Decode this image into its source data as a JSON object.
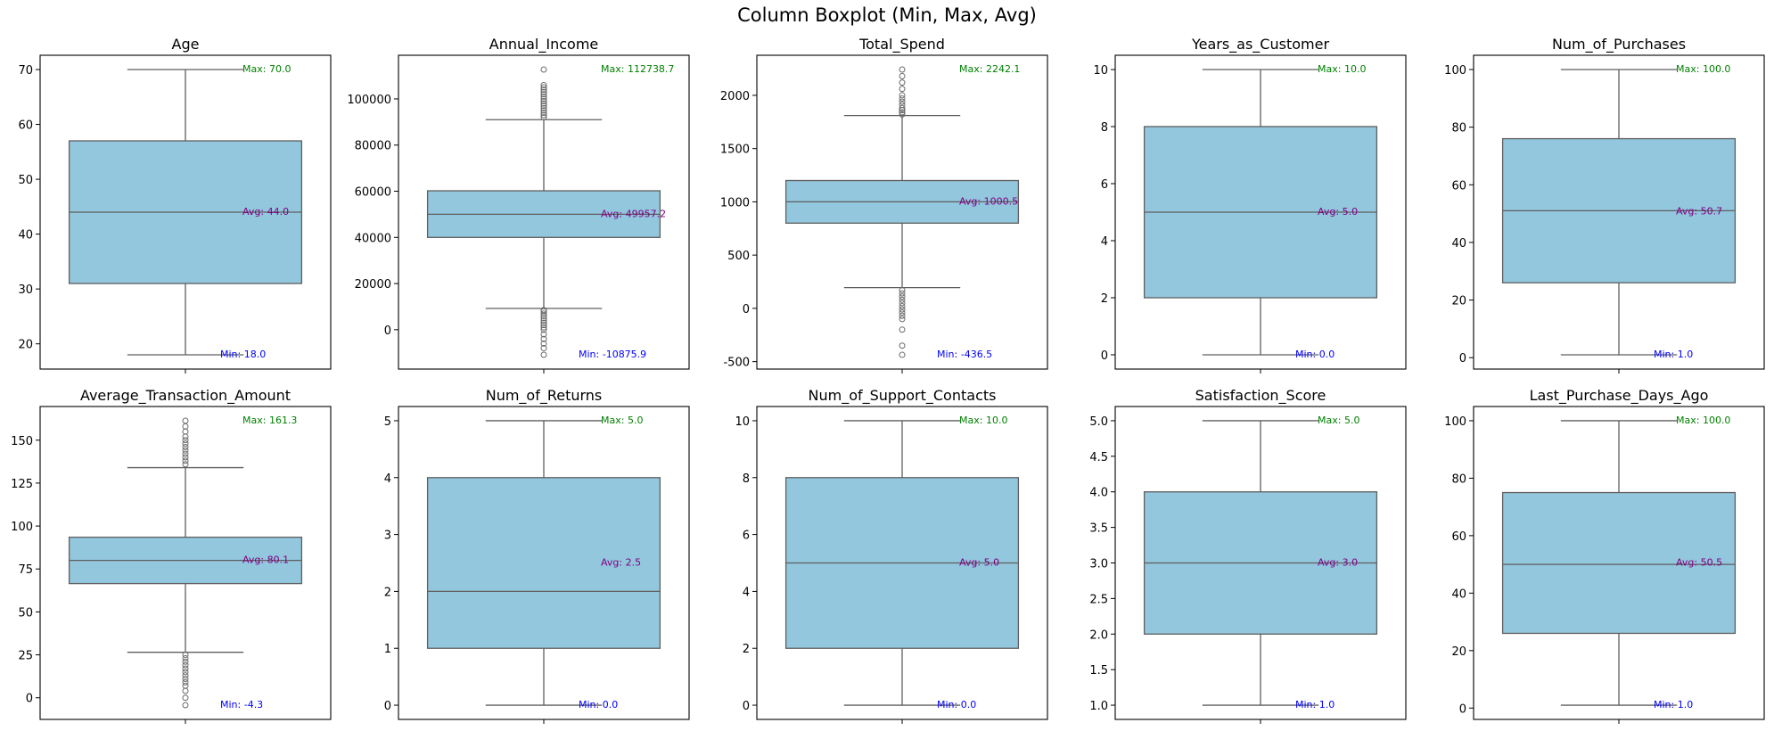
{
  "figure_title": "Column Boxplot (Min, Max, Avg)",
  "colors": {
    "box_fill": "#92c7de",
    "box_edge": "#5f5f5f",
    "max_text": "#008000",
    "avg_text": "#800080",
    "min_text": "#0000ff"
  },
  "chart_data": [
    {
      "type": "box",
      "title": "Age",
      "ylim": [
        15.4,
        72.6
      ],
      "yticks": [
        20,
        30,
        40,
        50,
        60,
        70
      ],
      "tick_labels": [
        "20",
        "30",
        "40",
        "50",
        "60",
        "70"
      ],
      "whisker_low": 18,
      "q1": 31,
      "median": 44,
      "q3": 57,
      "whisker_high": 70,
      "outliers": [],
      "min": 18.0,
      "max": 70.0,
      "avg": 44.0,
      "min_label": "Min: 18.0",
      "max_label": "Max: 70.0",
      "avg_label": "Avg: 44.0"
    },
    {
      "type": "box",
      "title": "Annual_Income",
      "ylim": [
        -17054,
        118917
      ],
      "yticks": [
        0,
        20000,
        40000,
        60000,
        80000,
        100000
      ],
      "tick_labels": [
        "0",
        "20000",
        "40000",
        "60000",
        "80000",
        "100000"
      ],
      "whisker_low": 9200,
      "q1": 40000,
      "median": 50000,
      "q3": 60200,
      "whisker_high": 91000,
      "outliers": [
        112738.7,
        106000,
        105000,
        104000,
        103000,
        102000,
        101000,
        100000,
        99000,
        98000,
        97000,
        96000,
        95000,
        94000,
        93000,
        92000,
        8500,
        8000,
        7000,
        6000,
        5000,
        4000,
        3000,
        2000,
        1000,
        0,
        -2000,
        -4000,
        -6000,
        -8000,
        -10875.9
      ],
      "min": -10875.9,
      "max": 112738.7,
      "avg": 49957.2,
      "min_label": "Min: -10875.9",
      "max_label": "Max: 112738.7",
      "avg_label": "Avg: 49957.2"
    },
    {
      "type": "box",
      "title": "Total_Spend",
      "ylim": [
        -570,
        2376
      ],
      "yticks": [
        -500,
        0,
        500,
        1000,
        1500,
        2000
      ],
      "tick_labels": [
        "-500",
        "0",
        "500",
        "1000",
        "1500",
        "2000"
      ],
      "whisker_low": 195,
      "q1": 800,
      "median": 1000,
      "q3": 1200,
      "whisker_high": 1810,
      "outliers": [
        2242.1,
        2180,
        2120,
        2060,
        2000,
        1970,
        1940,
        1910,
        1880,
        1860,
        1840,
        1820,
        170,
        140,
        110,
        80,
        50,
        20,
        -10,
        -40,
        -70,
        -100,
        -200,
        -350,
        -436.5
      ],
      "min": -436.5,
      "max": 2242.1,
      "avg": 1000.5,
      "min_label": "Min: -436.5",
      "max_label": "Max: 2242.1",
      "avg_label": "Avg: 1000.5"
    },
    {
      "type": "box",
      "title": "Years_as_Customer",
      "ylim": [
        -0.5,
        10.5
      ],
      "yticks": [
        0,
        2,
        4,
        6,
        8,
        10
      ],
      "tick_labels": [
        "0",
        "2",
        "4",
        "6",
        "8",
        "10"
      ],
      "whisker_low": 0,
      "q1": 2,
      "median": 5,
      "q3": 8,
      "whisker_high": 10,
      "outliers": [],
      "min": 0.0,
      "max": 10.0,
      "avg": 5.0,
      "min_label": "Min: 0.0",
      "max_label": "Max: 10.0",
      "avg_label": "Avg: 5.0"
    },
    {
      "type": "box",
      "title": "Num_of_Purchases",
      "ylim": [
        -3.95,
        104.95
      ],
      "yticks": [
        0,
        20,
        40,
        60,
        80,
        100
      ],
      "tick_labels": [
        "0",
        "20",
        "40",
        "60",
        "80",
        "100"
      ],
      "whisker_low": 1,
      "q1": 26,
      "median": 51,
      "q3": 76,
      "whisker_high": 100,
      "outliers": [],
      "min": 1.0,
      "max": 100.0,
      "avg": 50.7,
      "min_label": "Min: 1.0",
      "max_label": "Max: 100.0",
      "avg_label": "Avg: 50.7"
    },
    {
      "type": "box",
      "title": "Average_Transaction_Amount",
      "ylim": [
        -12.6,
        169.6
      ],
      "yticks": [
        0,
        25,
        50,
        75,
        100,
        125,
        150
      ],
      "tick_labels": [
        "0",
        "25",
        "50",
        "75",
        "100",
        "125",
        "150"
      ],
      "whisker_low": 26.5,
      "q1": 66.5,
      "median": 80,
      "q3": 93.5,
      "whisker_high": 134,
      "outliers": [
        161.3,
        158,
        155,
        152,
        150,
        148,
        146,
        144,
        142,
        140,
        138,
        136,
        25,
        23,
        21,
        19,
        17,
        15,
        13,
        11,
        9,
        7,
        4,
        0,
        -4.3
      ],
      "min": -4.3,
      "max": 161.3,
      "avg": 80.1,
      "min_label": "Min: -4.3",
      "max_label": "Max: 161.3",
      "avg_label": "Avg: 80.1"
    },
    {
      "type": "box",
      "title": "Num_of_Returns",
      "ylim": [
        -0.25,
        5.25
      ],
      "yticks": [
        0,
        1,
        2,
        3,
        4,
        5
      ],
      "tick_labels": [
        "0",
        "1",
        "2",
        "3",
        "4",
        "5"
      ],
      "whisker_low": 0,
      "q1": 1,
      "median": 2,
      "q3": 4,
      "whisker_high": 5,
      "outliers": [],
      "min": 0.0,
      "max": 5.0,
      "avg": 2.5,
      "min_label": "Min: 0.0",
      "max_label": "Max: 5.0",
      "avg_label": "Avg: 2.5"
    },
    {
      "type": "box",
      "title": "Num_of_Support_Contacts",
      "ylim": [
        -0.5,
        10.5
      ],
      "yticks": [
        0,
        2,
        4,
        6,
        8,
        10
      ],
      "tick_labels": [
        "0",
        "2",
        "4",
        "6",
        "8",
        "10"
      ],
      "whisker_low": 0,
      "q1": 2,
      "median": 5,
      "q3": 8,
      "whisker_high": 10,
      "outliers": [],
      "min": 0.0,
      "max": 10.0,
      "avg": 5.0,
      "min_label": "Min: 0.0",
      "max_label": "Max: 10.0",
      "avg_label": "Avg: 5.0"
    },
    {
      "type": "box",
      "title": "Satisfaction_Score",
      "ylim": [
        0.8,
        5.2
      ],
      "yticks": [
        1.0,
        1.5,
        2.0,
        2.5,
        3.0,
        3.5,
        4.0,
        4.5,
        5.0
      ],
      "tick_labels": [
        "1.0",
        "1.5",
        "2.0",
        "2.5",
        "3.0",
        "3.5",
        "4.0",
        "4.5",
        "5.0"
      ],
      "whisker_low": 1,
      "q1": 2,
      "median": 3,
      "q3": 4,
      "whisker_high": 5,
      "outliers": [],
      "min": 1.0,
      "max": 5.0,
      "avg": 3.0,
      "min_label": "Min: 1.0",
      "max_label": "Max: 5.0",
      "avg_label": "Avg: 3.0"
    },
    {
      "type": "box",
      "title": "Last_Purchase_Days_Ago",
      "ylim": [
        -3.95,
        104.95
      ],
      "yticks": [
        0,
        20,
        40,
        60,
        80,
        100
      ],
      "tick_labels": [
        "0",
        "20",
        "40",
        "60",
        "80",
        "100"
      ],
      "whisker_low": 1,
      "q1": 26,
      "median": 50,
      "q3": 75,
      "whisker_high": 100,
      "outliers": [],
      "min": 1.0,
      "max": 100.0,
      "avg": 50.5,
      "min_label": "Min: 1.0",
      "max_label": "Max: 100.0",
      "avg_label": "Avg: 50.5"
    }
  ]
}
